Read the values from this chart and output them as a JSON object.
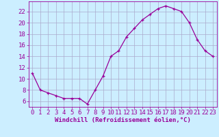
{
  "x": [
    0,
    1,
    2,
    3,
    4,
    5,
    6,
    7,
    8,
    9,
    10,
    11,
    12,
    13,
    14,
    15,
    16,
    17,
    18,
    19,
    20,
    21,
    22,
    23
  ],
  "y": [
    11,
    8,
    7.5,
    7,
    6.5,
    6.5,
    6.5,
    5.5,
    8,
    10.5,
    14,
    15,
    17.5,
    19,
    20.5,
    21.5,
    22.5,
    23,
    22.5,
    22,
    20,
    17,
    15,
    14
  ],
  "line_color": "#990099",
  "marker": "+",
  "bg_color": "#cceeff",
  "grid_color": "#aaaacc",
  "xlabel": "Windchill (Refroidissement éolien,°C)",
  "xlabel_color": "#990099",
  "ytick_labels": [
    "6",
    "8",
    "10",
    "12",
    "14",
    "16",
    "18",
    "20",
    "22"
  ],
  "ytick_values": [
    6,
    8,
    10,
    12,
    14,
    16,
    18,
    20,
    22
  ],
  "xlim": [
    -0.5,
    23.5
  ],
  "ylim": [
    5.0,
    23.8
  ],
  "tick_label_color": "#990099",
  "spine_color": "#990099",
  "font_size_xlabel": 6.5,
  "font_size_ticks": 6.5
}
